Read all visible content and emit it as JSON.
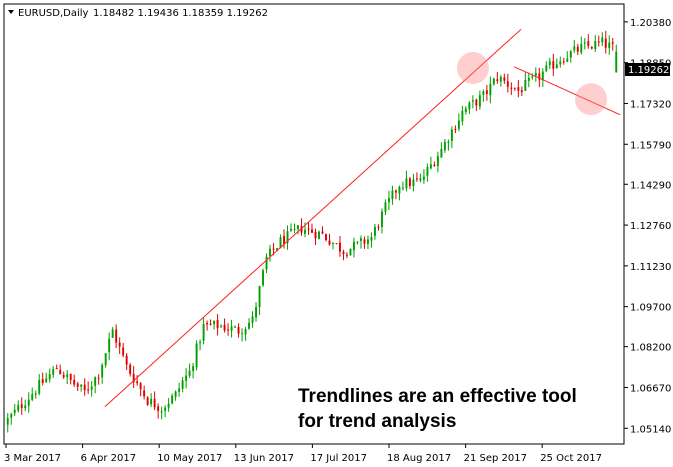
{
  "header": {
    "symbol_timeframe": "EURUSD,Daily",
    "ohlc": "1.18482 1.19436 1.18359 1.19262"
  },
  "price_tag": "1.19262",
  "annotation": {
    "line1": "Trendlines are an effective tool",
    "line2": "for trend analysis"
  },
  "chart_data": {
    "type": "candlestick",
    "title": "EURUSD,Daily",
    "symbol": "EURUSD",
    "timeframe": "Daily",
    "header_ohlc": {
      "open": 1.18482,
      "high": 1.19436,
      "low": 1.18359,
      "close": 1.19262
    },
    "last_price": 1.19262,
    "ylim": [
      1.0455,
      1.2105
    ],
    "x_tick_labels": [
      "3 Mar 2017",
      "6 Apr 2017",
      "10 May 2017",
      "13 Jun 2017",
      "17 Jul 2017",
      "18 Aug 2017",
      "21 Sep 2017",
      "25 Oct 2017"
    ],
    "y_tick_labels": [
      "1.20380",
      "1.18850",
      "1.17320",
      "1.15790",
      "1.14290",
      "1.12760",
      "1.11230",
      "1.09700",
      "1.08200",
      "1.06670",
      "1.05140"
    ],
    "bar_count": 175,
    "bull_color": "#00a000",
    "bear_color": "#e00000",
    "close_anchors": [
      [
        0,
        1.0545
      ],
      [
        8,
        1.066
      ],
      [
        14,
        1.074
      ],
      [
        18,
        1.069
      ],
      [
        22,
        1.065
      ],
      [
        26,
        1.072
      ],
      [
        30,
        1.088
      ],
      [
        34,
        1.0745
      ],
      [
        40,
        1.062
      ],
      [
        44,
        1.059
      ],
      [
        48,
        1.064
      ],
      [
        50,
        1.069
      ],
      [
        52,
        1.0725
      ],
      [
        56,
        1.0895
      ],
      [
        60,
        1.09
      ],
      [
        66,
        1.088
      ],
      [
        70,
        1.092
      ],
      [
        74,
        1.115
      ],
      [
        78,
        1.1215
      ],
      [
        84,
        1.1265
      ],
      [
        90,
        1.124
      ],
      [
        96,
        1.118
      ],
      [
        100,
        1.12
      ],
      [
        104,
        1.123
      ],
      [
        108,
        1.134
      ],
      [
        112,
        1.143
      ],
      [
        118,
        1.144
      ],
      [
        124,
        1.156
      ],
      [
        130,
        1.17
      ],
      [
        136,
        1.176
      ],
      [
        140,
        1.183
      ],
      [
        146,
        1.178
      ],
      [
        152,
        1.1835
      ],
      [
        158,
        1.19
      ],
      [
        164,
        1.194
      ],
      [
        170,
        1.196
      ],
      [
        175,
        1.1926
      ]
    ],
    "trendlines": [
      {
        "from": {
          "date": "6 Apr 2017",
          "price": 1.0595
        },
        "to": {
          "date": "after 21 Sep 2017",
          "price": 1.201
        },
        "role": "rising support"
      },
      {
        "from": {
          "date": "after 21 Sep 2017",
          "price": 1.187
        },
        "to": {
          "date": "early Nov 2017",
          "price": 1.169
        },
        "role": "falling resistance"
      }
    ],
    "highlight_circles": [
      {
        "date": "mid Sep 2017",
        "price": 1.1865,
        "meaning": "break of rising trendline"
      },
      {
        "date": "late Oct 2017",
        "price": 1.1748,
        "meaning": "break of falling trendline"
      }
    ],
    "annotations": [
      "Trendlines are an effective tool",
      "for trend analysis"
    ],
    "grid": false
  }
}
